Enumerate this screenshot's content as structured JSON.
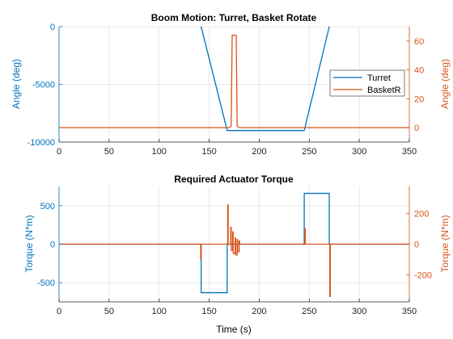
{
  "colors": {
    "series1": "#0072BD",
    "series2": "#D95319",
    "axis": "#262626",
    "grid": "#dfdfdf"
  },
  "chart_data": [
    {
      "type": "line",
      "title": "Boom Motion: Turret, Basket Rotate",
      "xlabel": "",
      "ylabel": "Angle (deg)",
      "ylabel_right": "Angle (deg)",
      "xlim": [
        0,
        350
      ],
      "ylim": [
        -10000,
        0
      ],
      "ylim_right": [
        -10,
        70
      ],
      "xticks": [
        "0",
        "50",
        "100",
        "150",
        "200",
        "250",
        "300",
        "350"
      ],
      "yticks": [
        "-10000",
        "-5000",
        "0"
      ],
      "yticks_right": [
        "0",
        "20",
        "40",
        "60"
      ],
      "grid": true,
      "legend": {
        "position": "right",
        "entries": [
          "Turret",
          "BasketR"
        ]
      },
      "series": [
        {
          "name": "Turret",
          "axis": "left",
          "x": [
            0,
            142,
            168,
            245,
            270,
            350
          ],
          "y": [
            3000,
            0,
            -9000,
            -9000,
            0,
            3000
          ]
        },
        {
          "name": "BasketR",
          "axis": "right",
          "x": [
            0,
            170,
            172,
            173,
            177,
            178,
            180,
            350
          ],
          "y": [
            0,
            0,
            1,
            64,
            64,
            1,
            0,
            0
          ]
        }
      ]
    },
    {
      "type": "line",
      "title": "Required Actuator Torque",
      "xlabel": "Time (s)",
      "ylabel": "Torque (N*m)",
      "ylabel_right": "Torque (N*m)",
      "xlim": [
        0,
        350
      ],
      "ylim": [
        -750,
        750
      ],
      "ylim_right": [
        -375,
        375
      ],
      "xticks": [
        "0",
        "50",
        "100",
        "150",
        "200",
        "250",
        "300",
        "350"
      ],
      "yticks": [
        "-500",
        "0",
        "500"
      ],
      "yticks_right": [
        "-200",
        "0",
        "200"
      ],
      "grid": true,
      "series": [
        {
          "name": "Turret",
          "axis": "left",
          "x": [
            0,
            142,
            142,
            168,
            168,
            245,
            245,
            270,
            270,
            350
          ],
          "y": [
            0,
            0,
            -630,
            -630,
            0,
            0,
            660,
            660,
            0,
            0
          ]
        },
        {
          "name": "BasketR",
          "axis": "right",
          "x": [
            0,
            141.5,
            141.5,
            142,
            142,
            168.5,
            168.5,
            169,
            169,
            171.5,
            171.5,
            172,
            172,
            173.5,
            173.5,
            174,
            174,
            176,
            176,
            176.5,
            176.5,
            178,
            178,
            178.5,
            178.5,
            180,
            180,
            180.5,
            180.5,
            245.5,
            245.5,
            246,
            246,
            270.5,
            270.5,
            271,
            271,
            350
          ],
          "y": [
            0,
            0,
            -100,
            -100,
            0,
            0,
            255,
            255,
            0,
            0,
            110,
            110,
            -40,
            -40,
            80,
            80,
            -60,
            -60,
            40,
            40,
            -70,
            -70,
            30,
            30,
            -50,
            -50,
            20,
            20,
            0,
            0,
            100,
            100,
            0,
            0,
            -340,
            -340,
            0,
            0
          ]
        }
      ]
    }
  ]
}
